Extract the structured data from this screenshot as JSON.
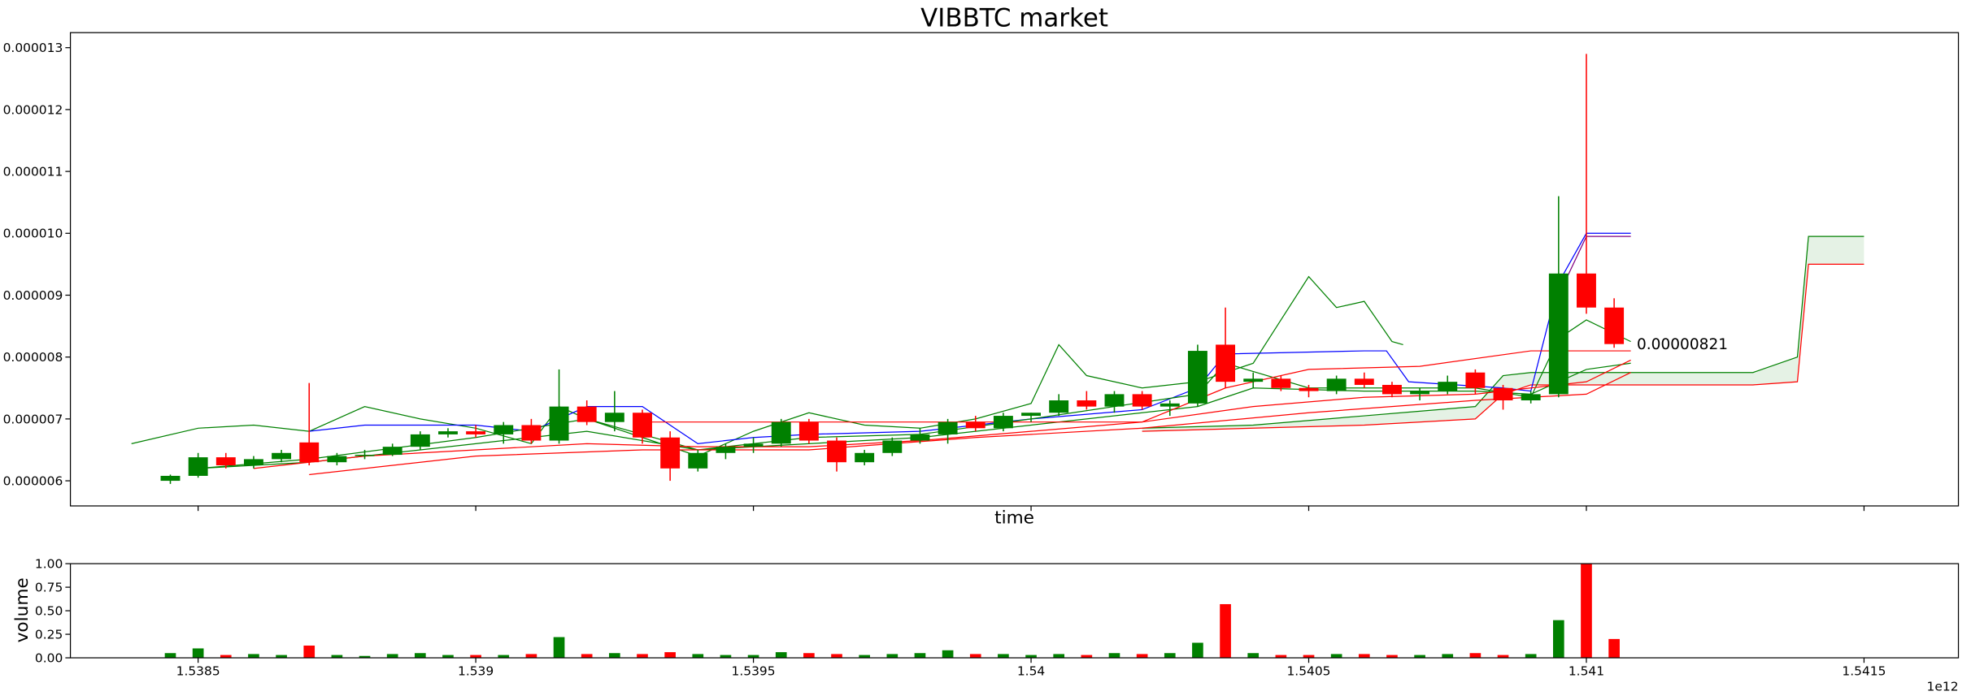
{
  "chart_data": {
    "type": "candlestick",
    "title": "VIBBTC market",
    "xlabel": "time",
    "volume_ylabel": "volume",
    "x_offset_label": "1e12",
    "up_color": "green",
    "down_color": "red",
    "xlim": [
      1.53827,
      1.54167
    ],
    "xticks": [
      1.5385,
      1.539,
      1.5395,
      1.54,
      1.5405,
      1.541,
      1.5415
    ],
    "ylim": [
      5.594e-06,
      1.3243e-05
    ],
    "yticks": [
      {
        "value": 6e-06,
        "label": "0.000006"
      },
      {
        "value": 7e-06,
        "label": "0.000007"
      },
      {
        "value": 8e-06,
        "label": "0.000008"
      },
      {
        "value": 9e-06,
        "label": "0.000009"
      },
      {
        "value": 1e-05,
        "label": "0.000010"
      },
      {
        "value": 1.1e-05,
        "label": "0.000011"
      },
      {
        "value": 1.2e-05,
        "label": "0.000012"
      },
      {
        "value": 1.3e-05,
        "label": "0.000013"
      }
    ],
    "volume_ylim": [
      0,
      1
    ],
    "volume_yticks": [
      {
        "value": 0,
        "label": "0.00"
      },
      {
        "value": 0.25,
        "label": "0.25"
      },
      {
        "value": 0.5,
        "label": "0.50"
      },
      {
        "value": 0.75,
        "label": "0.75"
      },
      {
        "value": 1,
        "label": "1.00"
      }
    ],
    "x": [
      1.53845,
      1.5385,
      1.53855,
      1.5386,
      1.53865,
      1.5387,
      1.53875,
      1.5388,
      1.53885,
      1.5389,
      1.53895,
      1.539,
      1.53905,
      1.5391,
      1.53915,
      1.5392,
      1.53925,
      1.5393,
      1.53935,
      1.5394,
      1.53945,
      1.5395,
      1.53955,
      1.5396,
      1.53965,
      1.5397,
      1.53975,
      1.5398,
      1.53985,
      1.5399,
      1.53995,
      1.54,
      1.54005,
      1.5401,
      1.54015,
      1.5402,
      1.54025,
      1.5403,
      1.54035,
      1.5404,
      1.54045,
      1.5405,
      1.54055,
      1.5406,
      1.54065,
      1.5407,
      1.54075,
      1.5408,
      1.54085,
      1.5409,
      1.54095,
      1.541,
      1.54105
    ],
    "ohlc": [
      [
        6e-06,
        6.1e-06,
        5.95e-06,
        6.08e-06
      ],
      [
        6.08e-06,
        6.45e-06,
        6.05e-06,
        6.38e-06
      ],
      [
        6.38e-06,
        6.45e-06,
        6.2e-06,
        6.25e-06
      ],
      [
        6.25e-06,
        6.4e-06,
        6.2e-06,
        6.35e-06
      ],
      [
        6.35e-06,
        6.5e-06,
        6.3e-06,
        6.45e-06
      ],
      [
        6.62e-06,
        7.58e-06,
        6.25e-06,
        6.3e-06
      ],
      [
        6.3e-06,
        6.45e-06,
        6.25e-06,
        6.4e-06
      ],
      [
        6.4e-06,
        6.5e-06,
        6.35e-06,
        6.42e-06
      ],
      [
        6.42e-06,
        6.6e-06,
        6.4e-06,
        6.55e-06
      ],
      [
        6.55e-06,
        6.8e-06,
        6.5e-06,
        6.75e-06
      ],
      [
        6.75e-06,
        6.85e-06,
        6.7e-06,
        6.8e-06
      ],
      [
        6.8e-06,
        6.9e-06,
        6.7e-06,
        6.75e-06
      ],
      [
        6.75e-06,
        6.95e-06,
        6.6e-06,
        6.9e-06
      ],
      [
        6.9e-06,
        7e-06,
        6.6e-06,
        6.65e-06
      ],
      [
        6.65e-06,
        7.8e-06,
        6.6e-06,
        7.2e-06
      ],
      [
        7.2e-06,
        7.3e-06,
        6.9e-06,
        6.95e-06
      ],
      [
        6.95e-06,
        7.45e-06,
        6.8e-06,
        7.1e-06
      ],
      [
        7.1e-06,
        7.15e-06,
        6.6e-06,
        6.7e-06
      ],
      [
        6.7e-06,
        6.8e-06,
        6e-06,
        6.2e-06
      ],
      [
        6.2e-06,
        6.5e-06,
        6.15e-06,
        6.45e-06
      ],
      [
        6.45e-06,
        6.6e-06,
        6.35e-06,
        6.55e-06
      ],
      [
        6.55e-06,
        6.7e-06,
        6.45e-06,
        6.6e-06
      ],
      [
        6.6e-06,
        7e-06,
        6.55e-06,
        6.95e-06
      ],
      [
        6.95e-06,
        7e-06,
        6.6e-06,
        6.65e-06
      ],
      [
        6.65e-06,
        6.7e-06,
        6.15e-06,
        6.3e-06
      ],
      [
        6.3e-06,
        6.5e-06,
        6.25e-06,
        6.45e-06
      ],
      [
        6.45e-06,
        6.7e-06,
        6.4e-06,
        6.65e-06
      ],
      [
        6.65e-06,
        6.85e-06,
        6.6e-06,
        6.75e-06
      ],
      [
        6.75e-06,
        7e-06,
        6.6e-06,
        6.95e-06
      ],
      [
        6.95e-06,
        7.05e-06,
        6.8e-06,
        6.85e-06
      ],
      [
        6.85e-06,
        7.1e-06,
        6.8e-06,
        7.05e-06
      ],
      [
        7.05e-06,
        7.1e-06,
        6.95e-06,
        7.1e-06
      ],
      [
        7.1e-06,
        7.4e-06,
        7.05e-06,
        7.3e-06
      ],
      [
        7.3e-06,
        7.45e-06,
        7.15e-06,
        7.2e-06
      ],
      [
        7.2e-06,
        7.45e-06,
        7.1e-06,
        7.4e-06
      ],
      [
        7.4e-06,
        7.45e-06,
        7.15e-06,
        7.2e-06
      ],
      [
        7.2e-06,
        7.3e-06,
        7.05e-06,
        7.25e-06
      ],
      [
        7.25e-06,
        8.2e-06,
        7.2e-06,
        8.1e-06
      ],
      [
        8.2e-06,
        8.8e-06,
        7.5e-06,
        7.6e-06
      ],
      [
        7.6e-06,
        7.75e-06,
        7.5e-06,
        7.65e-06
      ],
      [
        7.65e-06,
        7.7e-06,
        7.45e-06,
        7.5e-06
      ],
      [
        7.5e-06,
        7.55e-06,
        7.35e-06,
        7.45e-06
      ],
      [
        7.45e-06,
        7.7e-06,
        7.4e-06,
        7.65e-06
      ],
      [
        7.65e-06,
        7.75e-06,
        7.5e-06,
        7.55e-06
      ],
      [
        7.55e-06,
        7.6e-06,
        7.35e-06,
        7.4e-06
      ],
      [
        7.4e-06,
        7.5e-06,
        7.3e-06,
        7.45e-06
      ],
      [
        7.45e-06,
        7.7e-06,
        7.4e-06,
        7.6e-06
      ],
      [
        7.75e-06,
        7.8e-06,
        7.4e-06,
        7.5e-06
      ],
      [
        7.5e-06,
        7.55e-06,
        7.15e-06,
        7.3e-06
      ],
      [
        7.3e-06,
        7.45e-06,
        7.25e-06,
        7.4e-06
      ],
      [
        7.4e-06,
        1.06e-05,
        7.35e-06,
        9.35e-06
      ],
      [
        9.35e-06,
        1.29e-05,
        8.7e-06,
        8.8e-06
      ],
      [
        8.8e-06,
        8.95e-06,
        8.15e-06,
        8.21e-06
      ]
    ],
    "volume": [
      0.05,
      0.1,
      0.03,
      0.04,
      0.03,
      0.13,
      0.03,
      0.02,
      0.04,
      0.05,
      0.03,
      0.03,
      0.03,
      0.04,
      0.22,
      0.04,
      0.05,
      0.04,
      0.06,
      0.04,
      0.03,
      0.03,
      0.06,
      0.05,
      0.04,
      0.03,
      0.04,
      0.05,
      0.08,
      0.04,
      0.04,
      0.03,
      0.04,
      0.03,
      0.05,
      0.04,
      0.05,
      0.16,
      0.57,
      0.05,
      0.03,
      0.03,
      0.04,
      0.04,
      0.03,
      0.03,
      0.04,
      0.05,
      0.03,
      0.04,
      0.4,
      1,
      0.2
    ],
    "last_price_label": {
      "value": 8.21e-06,
      "label": "0.00000821"
    },
    "cloud": {
      "upper_color": "green",
      "lower_color": "red",
      "x": [
        1.5402,
        1.5404,
        1.5406,
        1.5408,
        1.54085,
        1.5409,
        1.541,
        1.5413,
        1.54138,
        1.5414,
        1.5415
      ],
      "upper": [
        6.85e-06,
        6.9e-06,
        7.05e-06,
        7.2e-06,
        7.7e-06,
        7.75e-06,
        7.75e-06,
        7.75e-06,
        8e-06,
        9.95e-06,
        9.95e-06
      ],
      "lower": [
        6.8e-06,
        6.85e-06,
        6.9e-06,
        7e-06,
        7.4e-06,
        7.55e-06,
        7.55e-06,
        7.55e-06,
        7.6e-06,
        9.5e-06,
        9.5e-06
      ]
    },
    "lines": [
      {
        "color": "green",
        "x": [
          1.53838,
          1.5385,
          1.5386,
          1.5387,
          1.5388,
          1.5389,
          1.539,
          1.5391,
          1.53915,
          1.5392,
          1.5393,
          1.5394,
          1.5395,
          1.5396,
          1.5397,
          1.5398,
          1.5399,
          1.54,
          1.54005,
          1.5401,
          1.5402,
          1.5403,
          1.5404,
          1.54045,
          1.5405,
          1.54055,
          1.5406,
          1.54065,
          1.54067
        ],
        "values": [
          6.6e-06,
          6.85e-06,
          6.9e-06,
          6.8e-06,
          7.2e-06,
          7e-06,
          6.85e-06,
          6.6e-06,
          7.2e-06,
          7e-06,
          6.7e-06,
          6.4e-06,
          6.8e-06,
          7.1e-06,
          6.9e-06,
          6.85e-06,
          7e-06,
          7.25e-06,
          8.2e-06,
          7.7e-06,
          7.5e-06,
          7.6e-06,
          7.9e-06,
          8.6e-06,
          9.3e-06,
          8.8e-06,
          8.9e-06,
          8.25e-06,
          8.2e-06
        ]
      },
      {
        "color": "blue",
        "x": [
          1.5387,
          1.5388,
          1.539,
          1.5391,
          1.5392,
          1.5393,
          1.5394,
          1.5395,
          1.5396,
          1.5398,
          1.54,
          1.5402,
          1.5403,
          1.54035,
          1.5406,
          1.54064,
          1.54068,
          1.54085,
          1.5409,
          1.54095,
          1.541,
          1.54108
        ],
        "values": [
          6.8e-06,
          6.9e-06,
          6.9e-06,
          6.8e-06,
          7.2e-06,
          7.2e-06,
          6.6e-06,
          6.7e-06,
          6.75e-06,
          6.8e-06,
          7e-06,
          7.15e-06,
          7.5e-06,
          8.05e-06,
          8.1e-06,
          8.1e-06,
          7.6e-06,
          7.5e-06,
          7.45e-06,
          9.2e-06,
          1e-05,
          1e-05
        ]
      },
      {
        "color": "purple",
        "x": [
          1.54095,
          1.541,
          1.54108
        ],
        "values": [
          9e-06,
          9.95e-06,
          9.95e-06
        ]
      },
      {
        "color": "green",
        "x": [
          1.5385,
          1.5387,
          1.539,
          1.5392,
          1.5394,
          1.5396,
          1.5398,
          1.54,
          1.5403,
          1.54035,
          1.5405,
          1.5408,
          1.5409,
          1.54095,
          1.541,
          1.54108
        ],
        "values": [
          6.2e-06,
          6.35e-06,
          6.7e-06,
          7e-06,
          6.5e-06,
          6.7e-06,
          6.75e-06,
          7e-06,
          7.4e-06,
          7.9e-06,
          7.5e-06,
          7.5e-06,
          7.35e-06,
          8.3e-06,
          8.6e-06,
          8.25e-06
        ]
      },
      {
        "color": "green",
        "x": [
          1.5385,
          1.5387,
          1.539,
          1.5392,
          1.5394,
          1.5396,
          1.5398,
          1.54,
          1.5403,
          1.5404,
          1.5406,
          1.5408,
          1.5409,
          1.541,
          1.54108
        ],
        "values": [
          6.2e-06,
          6.3e-06,
          6.6e-06,
          6.8e-06,
          6.5e-06,
          6.6e-06,
          6.7e-06,
          6.9e-06,
          7.2e-06,
          7.5e-06,
          7.45e-06,
          7.45e-06,
          7.4e-06,
          7.8e-06,
          7.9e-06
        ]
      },
      {
        "color": "red",
        "x": [
          1.5386,
          1.5388,
          1.539,
          1.5392,
          1.5394,
          1.5396,
          1.5398,
          1.54,
          1.5402,
          1.5404,
          1.5406,
          1.5408,
          1.541,
          1.54108
        ],
        "values": [
          6.2e-06,
          6.4e-06,
          6.5e-06,
          6.6e-06,
          6.55e-06,
          6.55e-06,
          6.65e-06,
          6.8e-06,
          6.95e-06,
          7.2e-06,
          7.35e-06,
          7.4e-06,
          7.6e-06,
          7.95e-06
        ]
      },
      {
        "color": "red",
        "x": [
          1.5387,
          1.539,
          1.5393,
          1.5396,
          1.5399,
          1.5402,
          1.5405,
          1.5408,
          1.541,
          1.54108
        ],
        "values": [
          6.1e-06,
          6.4e-06,
          6.5e-06,
          6.5e-06,
          6.7e-06,
          6.85e-06,
          7.1e-06,
          7.3e-06,
          7.4e-06,
          7.75e-06
        ]
      },
      {
        "color": "red",
        "x": [
          1.5393,
          1.5402,
          1.54035,
          1.5405,
          1.5407,
          1.5409,
          1.54108
        ],
        "values": [
          6.95e-06,
          6.95e-06,
          7.5e-06,
          7.8e-06,
          7.85e-06,
          8.1e-06,
          8.1e-06
        ]
      }
    ]
  }
}
